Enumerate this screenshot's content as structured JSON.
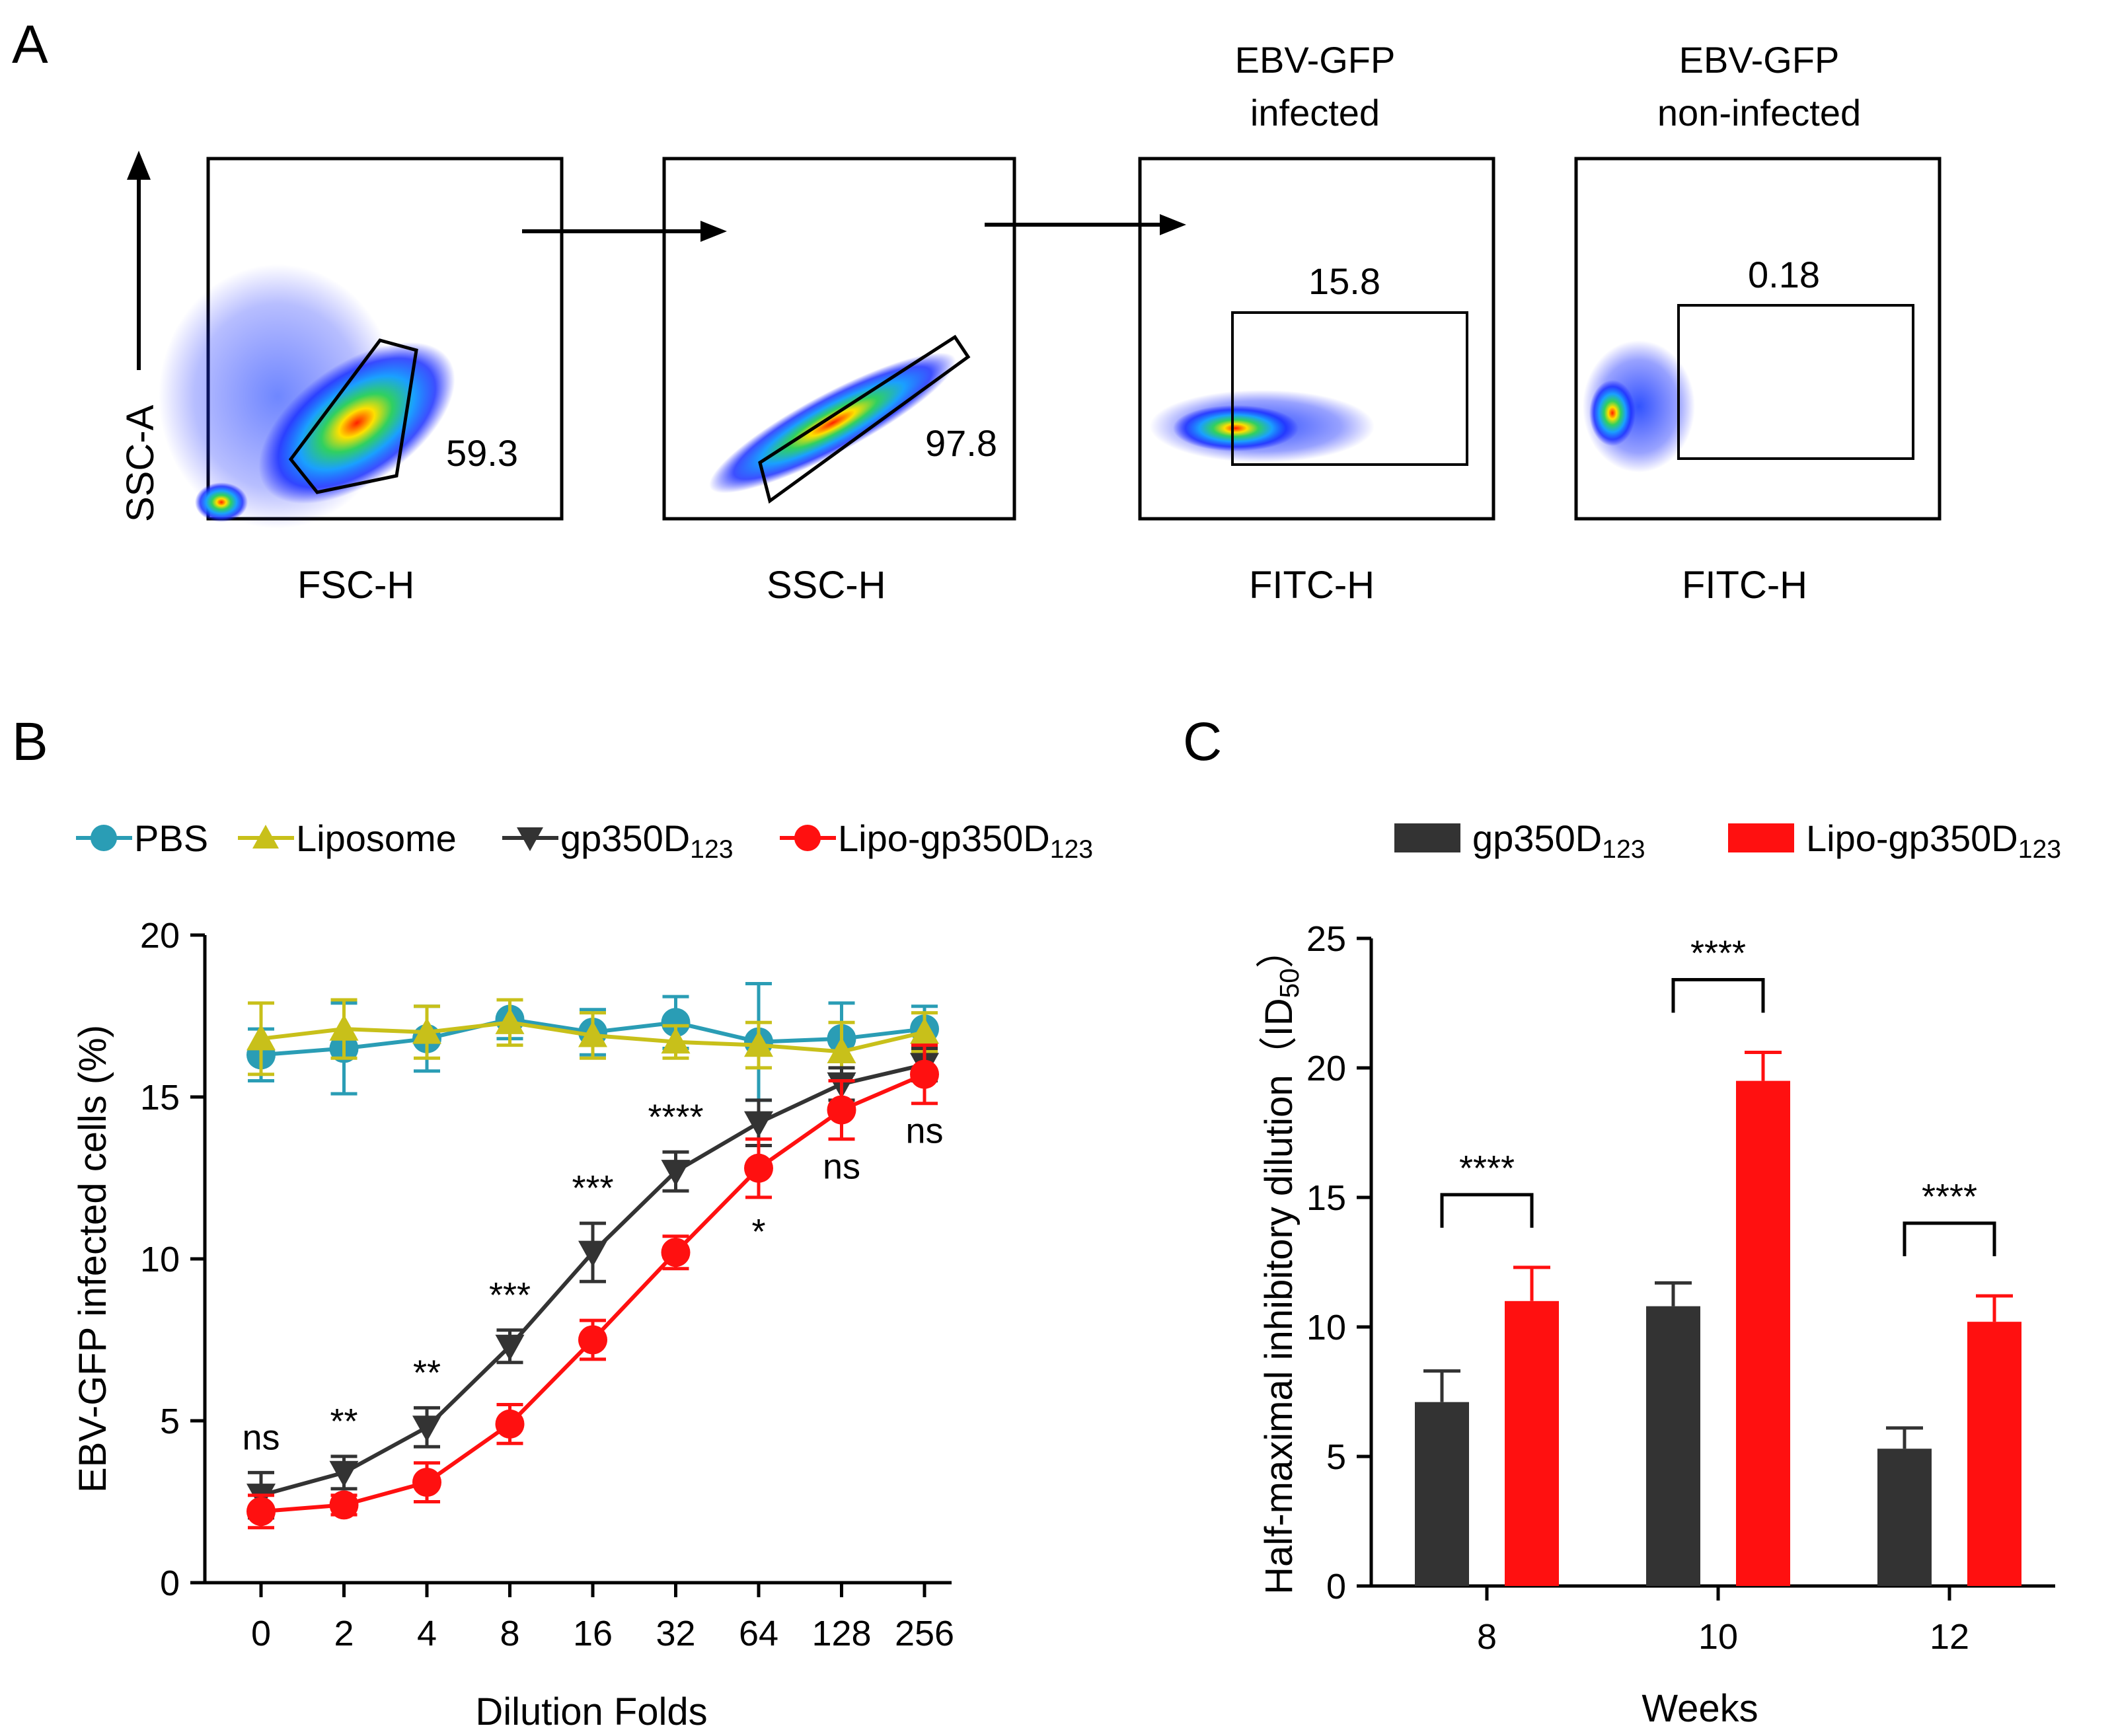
{
  "panels": {
    "a": {
      "letter": "A",
      "y_axis_label": "SSC-A",
      "plots": [
        {
          "x_label": "FSC-H",
          "gate_value": "59.3"
        },
        {
          "x_label": "SSC-H",
          "gate_value": "97.8"
        },
        {
          "x_label": "FITC-H",
          "gate_value": "15.8",
          "title_line1": "EBV-GFP",
          "title_line2": "infected"
        },
        {
          "x_label": "FITC-H",
          "gate_value": "0.18",
          "title_line1": "EBV-GFP",
          "title_line2": "non-infected"
        }
      ]
    },
    "b": {
      "letter": "B"
    },
    "c": {
      "letter": "C"
    }
  },
  "chart_data": [
    {
      "type": "line",
      "x_label": "Dilution  Folds",
      "y_label": "EBV-GFP infected cells (%)",
      "categories": [
        "0",
        "2",
        "4",
        "8",
        "16",
        "32",
        "64",
        "128",
        "256"
      ],
      "ylim": [
        0,
        20
      ],
      "yticks": [
        "0",
        "5",
        "10",
        "15",
        "20"
      ],
      "series": [
        {
          "name": "PBS",
          "color": "#2a9db5",
          "marker": "circle",
          "values": [
            16.3,
            16.5,
            16.8,
            17.4,
            17.0,
            17.3,
            16.7,
            16.8,
            17.1
          ],
          "errors": [
            0.8,
            1.4,
            1.0,
            0.6,
            0.7,
            0.8,
            1.8,
            1.1,
            0.7
          ]
        },
        {
          "name": "Liposome",
          "color": "#c8c01a",
          "marker": "triangle-up",
          "values": [
            16.8,
            17.1,
            17.0,
            17.3,
            16.9,
            16.7,
            16.6,
            16.4,
            17.0
          ],
          "errors": [
            1.1,
            0.9,
            0.8,
            0.7,
            0.7,
            0.5,
            0.7,
            0.9,
            0.6
          ]
        },
        {
          "name": "gp350D",
          "name_sub": "123",
          "color": "#333333",
          "marker": "triangle-down",
          "values": [
            2.7,
            3.4,
            4.8,
            7.3,
            10.2,
            12.7,
            14.2,
            15.4,
            16.0
          ],
          "errors": [
            0.7,
            0.5,
            0.6,
            0.5,
            0.9,
            0.6,
            0.7,
            0.5,
            0.5
          ]
        },
        {
          "name": "Lipo-gp350D",
          "name_sub": "123",
          "color": "#ff1010",
          "marker": "circle",
          "values": [
            2.2,
            2.4,
            3.1,
            4.9,
            7.5,
            10.2,
            12.8,
            14.6,
            15.7
          ],
          "errors": [
            0.5,
            0.3,
            0.6,
            0.6,
            0.6,
            0.5,
            0.9,
            0.9,
            0.9
          ]
        }
      ],
      "annotations": [
        "ns",
        "**",
        "**",
        "***",
        "***",
        "****",
        "*",
        "ns",
        "ns"
      ]
    },
    {
      "type": "bar",
      "x_label": "Weeks",
      "y_label": "Half-maximal inhibitory dilution（ID",
      "y_label_sub": "50",
      "y_label_end": "）",
      "categories": [
        "8",
        "10",
        "12"
      ],
      "ylim": [
        0,
        25
      ],
      "yticks": [
        "0",
        "5",
        "10",
        "15",
        "20",
        "25"
      ],
      "series": [
        {
          "name": "gp350D",
          "name_sub": "123",
          "color": "#333333",
          "values": [
            7.1,
            10.8,
            5.3
          ],
          "errors": [
            1.2,
            0.9,
            0.8
          ]
        },
        {
          "name": "Lipo-gp350D",
          "name_sub": "123",
          "color": "#ff1010",
          "values": [
            11.0,
            19.5,
            10.2
          ],
          "errors": [
            1.3,
            1.1,
            1.0
          ]
        }
      ],
      "significance": [
        "****",
        "****",
        "****"
      ]
    }
  ]
}
